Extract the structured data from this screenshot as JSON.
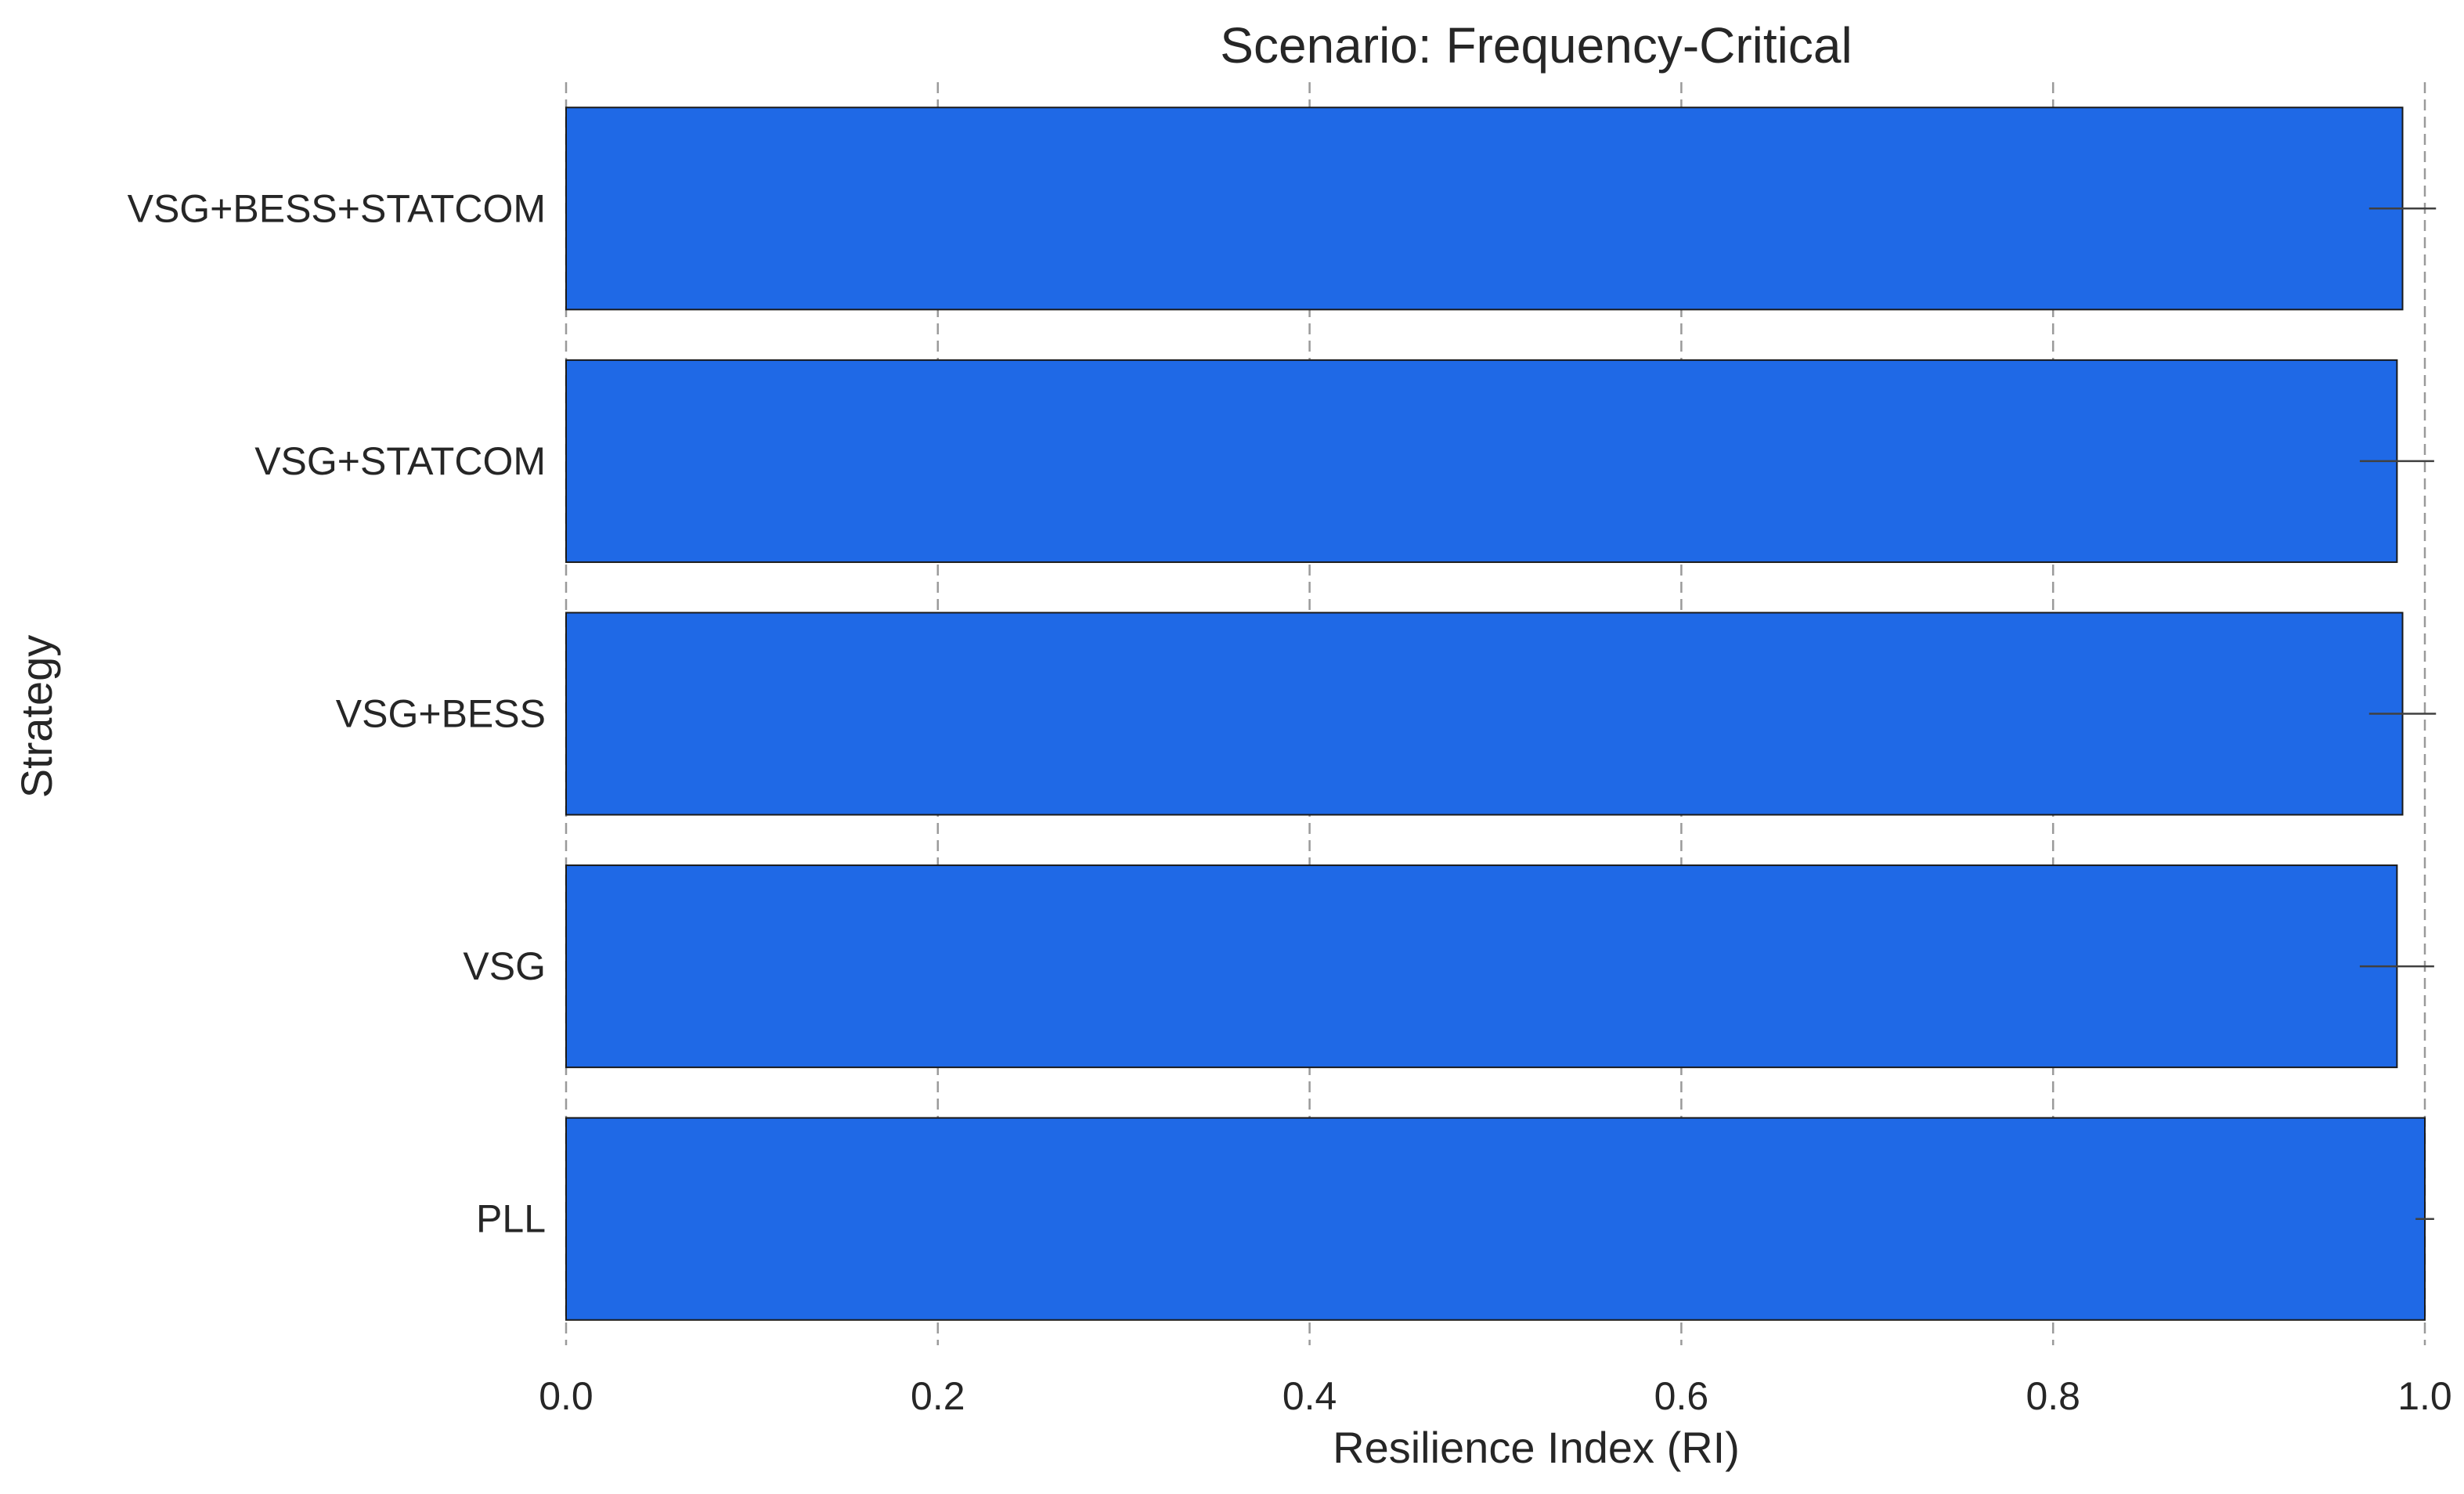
{
  "chart_data": {
    "type": "bar",
    "orientation": "horizontal",
    "title": "Scenario: Frequency-Critical",
    "xlabel": "Resilience Index (RI)",
    "ylabel": "Strategy",
    "categories": [
      "VSG+BESS+STATCOM",
      "VSG+STATCOM",
      "VSG+BESS",
      "VSG",
      "PLL"
    ],
    "values": [
      0.988,
      0.985,
      0.988,
      0.985,
      1.0
    ],
    "error": [
      0.018,
      0.02,
      0.018,
      0.02,
      0.005
    ],
    "xlim": [
      0.0,
      1.0
    ],
    "xticks": [
      "0.0",
      "0.2",
      "0.4",
      "0.6",
      "0.8",
      "1.0"
    ],
    "grid": "vertical-dashed",
    "legend": "none",
    "bar_color": "#1f69e6",
    "bar_edge_color": "#1a1a1a",
    "grid_color": "#9a9a9a"
  }
}
